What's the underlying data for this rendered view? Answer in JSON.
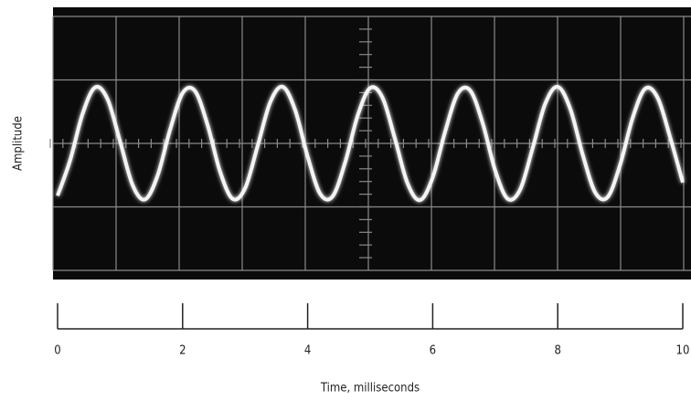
{
  "chart_data": {
    "type": "line",
    "y_label": "Amplitude",
    "x_label": "Time, milliseconds",
    "x": [
      0,
      0.2,
      0.4,
      0.6,
      0.8,
      1,
      1.2,
      1.4,
      1.6,
      1.8,
      2,
      2.2,
      2.4,
      2.6,
      2.8,
      3,
      3.2,
      3.4,
      3.6,
      3.8,
      4,
      4.2,
      4.4,
      4.6,
      4.8,
      5,
      5.2,
      5.4,
      5.6,
      5.8,
      6,
      6.2,
      6.4,
      6.6,
      6.8,
      7,
      7.2,
      7.4,
      7.6,
      7.8,
      8,
      8.2,
      8.4,
      8.6,
      8.8,
      9,
      9.2,
      9.4,
      9.6,
      9.8,
      10
    ],
    "values": [
      -0.83,
      -0.27,
      0.47,
      0.89,
      0.7,
      0.03,
      -0.66,
      -0.89,
      -0.51,
      0.22,
      0.8,
      0.83,
      0.29,
      -0.45,
      -0.88,
      -0.71,
      -0.04,
      0.65,
      0.9,
      0.53,
      -0.21,
      -0.8,
      -0.84,
      -0.3,
      0.44,
      0.88,
      0.72,
      0.06,
      -0.64,
      -0.9,
      -0.54,
      0.19,
      0.79,
      0.84,
      0.32,
      -0.43,
      -0.88,
      -0.73,
      -0.07,
      0.63,
      0.9,
      0.55,
      -0.18,
      -0.78,
      -0.85,
      -0.33,
      0.41,
      0.87,
      0.72,
      0.09,
      -0.62
    ],
    "color": "#f4f4f4",
    "xlim": [
      0,
      10
    ],
    "xticks": [
      0,
      2,
      4,
      6,
      8,
      10
    ],
    "ylim": [
      -2,
      2
    ]
  }
}
